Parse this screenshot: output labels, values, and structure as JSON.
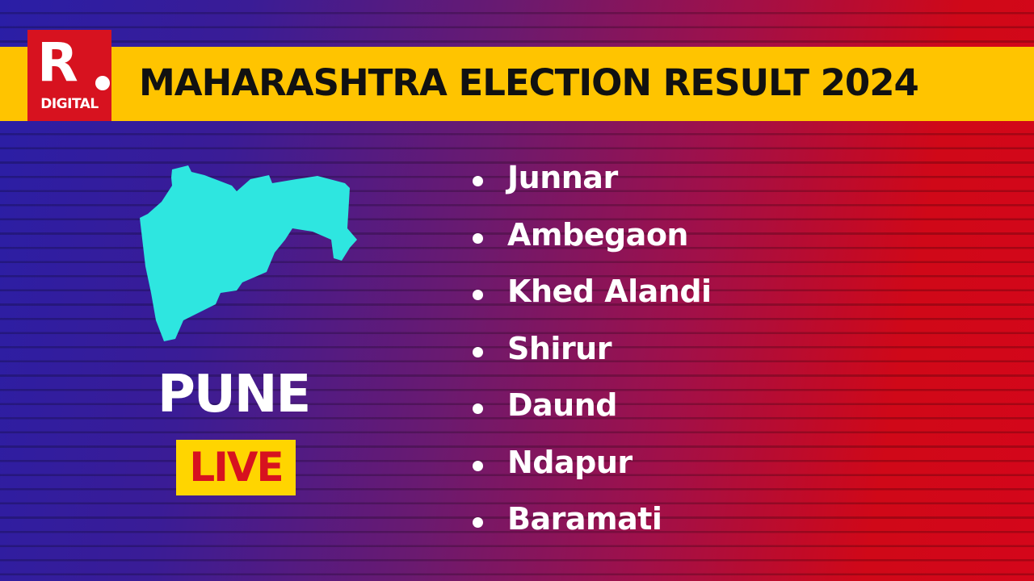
{
  "logo": {
    "letter": "R",
    "sub": "DIGITAL"
  },
  "header": {
    "title": "MAHARASHTRA ELECTION RESULT 2024"
  },
  "district": {
    "name": "PUNE",
    "badge": "LIVE",
    "map_color": "#2ee6e0"
  },
  "constituencies": [
    "Junnar",
    "Ambegaon",
    "Khed Alandi",
    "Shirur",
    "Daund",
    "Ndapur",
    "Baramati"
  ],
  "colors": {
    "banner": "#ffc400",
    "logo_red": "#d7121f",
    "live_bg": "#ffd500"
  }
}
